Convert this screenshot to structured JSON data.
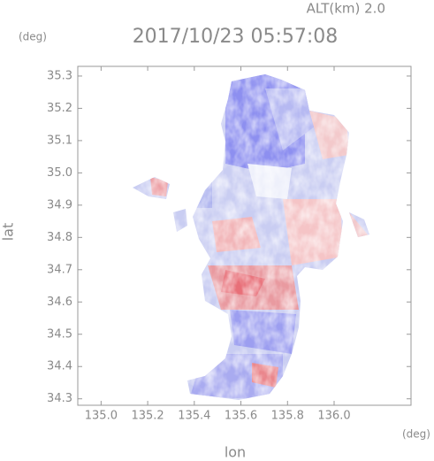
{
  "chart_data": {
    "type": "radar-map",
    "title": "2017/10/23 05:57:08",
    "altitude": "ALT(km) 2.0",
    "x_label": "lon",
    "y_label": "lat",
    "x_unit": "(deg)",
    "y_unit": "(deg)",
    "xlim": [
      134.9,
      136.33
    ],
    "ylim": [
      34.28,
      35.33
    ],
    "xticks": [
      {
        "value": 135,
        "label": "135.0"
      },
      135.2,
      135.4,
      135.6,
      135.8,
      {
        "value": 136,
        "label": "136.0"
      }
    ],
    "yticks": [
      34.3,
      34.4,
      34.5,
      34.6,
      34.7,
      34.8,
      34.9,
      {
        "value": 35,
        "label": "35.0"
      },
      35.1,
      35.2,
      35.3
    ],
    "grid": false
  }
}
